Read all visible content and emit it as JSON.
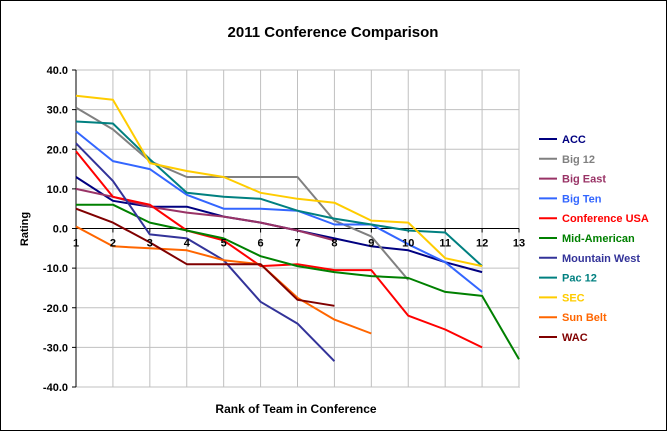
{
  "chart_data": {
    "type": "line",
    "title": "2011 Conference Comparison",
    "xlabel": "Rank of Team in Conference",
    "ylabel": "Rating",
    "xlim": [
      1,
      13
    ],
    "ylim": [
      -40,
      40
    ],
    "x_ticks": [
      "1",
      "2",
      "3",
      "4",
      "5",
      "6",
      "7",
      "8",
      "9",
      "10",
      "11",
      "12",
      "13"
    ],
    "y_ticks": [
      "40.0",
      "30.0",
      "20.0",
      "10.0",
      "0.0",
      "-10.0",
      "-20.0",
      "-30.0",
      "-40.0"
    ],
    "grid": true,
    "legend_position": "right",
    "series": [
      {
        "name": "ACC",
        "color": "#000080",
        "values": [
          13,
          7,
          5.5,
          5.5,
          3,
          1.5,
          -0.5,
          -2.5,
          -4.5,
          -5.5,
          -8.5,
          -11
        ]
      },
      {
        "name": "Big 12",
        "color": "#808080",
        "values": [
          30.5,
          25,
          17,
          13,
          13,
          13,
          13,
          2,
          -2,
          -13
        ]
      },
      {
        "name": "Big East",
        "color": "#993366",
        "values": [
          10,
          8,
          5.5,
          4,
          3,
          1.5,
          -0.5,
          -3
        ]
      },
      {
        "name": "Big Ten",
        "color": "#3366FF",
        "values": [
          24.5,
          17,
          15,
          8.5,
          5,
          5,
          4.5,
          1,
          1,
          -4,
          -8.5,
          -16
        ]
      },
      {
        "name": "Conference USA",
        "color": "#FF0000",
        "values": [
          19.5,
          8,
          6,
          -0.5,
          -3,
          -9.5,
          -9,
          -10.5,
          -10.5,
          -22,
          -25.5,
          -30
        ]
      },
      {
        "name": "Mid-American",
        "color": "#008000",
        "values": [
          6,
          6,
          1.5,
          -0.5,
          -2.5,
          -7,
          -9.5,
          -11,
          -12,
          -12.5,
          -16,
          -17,
          -33
        ]
      },
      {
        "name": "Mountain West",
        "color": "#333399",
        "values": [
          21.5,
          12,
          -1.5,
          -2.5,
          -8,
          -18.5,
          -24,
          -33.5
        ]
      },
      {
        "name": "Pac 12",
        "color": "#008080",
        "values": [
          27,
          26.5,
          17.5,
          9,
          8,
          7.5,
          4.5,
          2.5,
          1,
          -0.5,
          -1,
          -9.5
        ]
      },
      {
        "name": "SEC",
        "color": "#FFCC00",
        "values": [
          33.5,
          32.5,
          16.5,
          14.5,
          13,
          9,
          7.5,
          6.5,
          2,
          1.5,
          -7.5,
          -9.5
        ]
      },
      {
        "name": "Sun Belt",
        "color": "#FF6600",
        "values": [
          0.5,
          -4.5,
          -5,
          -5.5,
          -8,
          -9,
          -17.5,
          -23,
          -26.5
        ]
      },
      {
        "name": "WAC",
        "color": "#800000",
        "values": [
          5,
          1.5,
          -3.5,
          -9,
          -9,
          -9,
          -18,
          -19.5
        ]
      }
    ]
  }
}
